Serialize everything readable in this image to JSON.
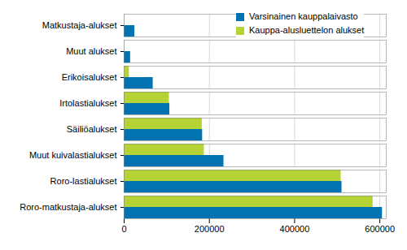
{
  "chart_data": {
    "type": "bar",
    "orientation": "horizontal",
    "categories": [
      "Matkustaja-alukset",
      "Muut alukset",
      "Erikoisalukset",
      "Irtolastialukset",
      "Säiliöalukset",
      "Muut kuivalastialukset",
      "Roro-lastialukset",
      "Roro-matkustaja-alukset"
    ],
    "series": [
      {
        "name": "Varsinainen kauppalaivasto",
        "color": "#0073b0",
        "values": [
          25000,
          15000,
          68000,
          107000,
          184000,
          234000,
          511000,
          606000
        ]
      },
      {
        "name": "Kauppa-alusluettelon alukset",
        "color": "#b5d334",
        "values": [
          0,
          0,
          12000,
          106000,
          183000,
          188000,
          509000,
          584000
        ]
      }
    ],
    "xlim": [
      0,
      615000
    ],
    "xticks": [
      0,
      200000,
      400000,
      600000
    ],
    "grid": true,
    "legend": "top-right"
  }
}
